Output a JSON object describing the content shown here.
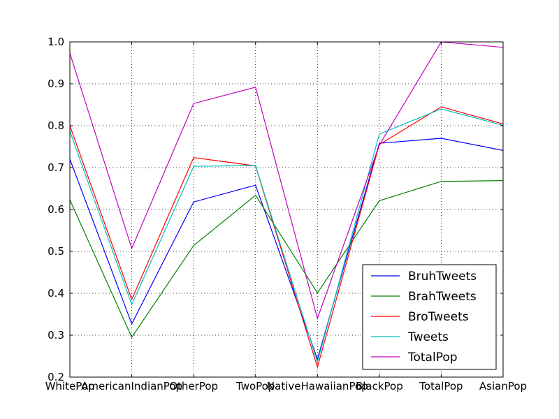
{
  "chart_data": {
    "type": "line",
    "title": "",
    "xlabel": "",
    "ylabel": "",
    "categories": [
      "WhitePop",
      "AmericanIndianPop",
      "OtherPop",
      "TwoPop",
      "NativeHawaiianPop",
      "BlackPop",
      "TotalPop",
      "AsianPop"
    ],
    "ylim": [
      0.2,
      1.0
    ],
    "yticks": [
      "0.2",
      "0.3",
      "0.4",
      "0.5",
      "0.6",
      "0.7",
      "0.8",
      "0.9",
      "1.0"
    ],
    "grid": true,
    "legend_position": "lower-right",
    "series": [
      {
        "name": "BruhTweets",
        "color": "#0000ff",
        "values": [
          0.72,
          0.327,
          0.618,
          0.658,
          0.243,
          0.758,
          0.77,
          0.741
        ]
      },
      {
        "name": "BrahTweets",
        "color": "#008000",
        "values": [
          0.623,
          0.295,
          0.514,
          0.634,
          0.401,
          0.621,
          0.667,
          0.669
        ]
      },
      {
        "name": "BroTweets",
        "color": "#ff0000",
        "values": [
          0.8,
          0.385,
          0.724,
          0.704,
          0.224,
          0.755,
          0.845,
          0.804
        ]
      },
      {
        "name": "Tweets",
        "color": "#00bfbf",
        "values": [
          0.787,
          0.373,
          0.703,
          0.705,
          0.236,
          0.78,
          0.84,
          0.801
        ]
      },
      {
        "name": "TotalPop",
        "color": "#bf00bf",
        "values": [
          0.973,
          0.507,
          0.853,
          0.892,
          0.34,
          0.754,
          1.0,
          0.987
        ]
      }
    ]
  }
}
